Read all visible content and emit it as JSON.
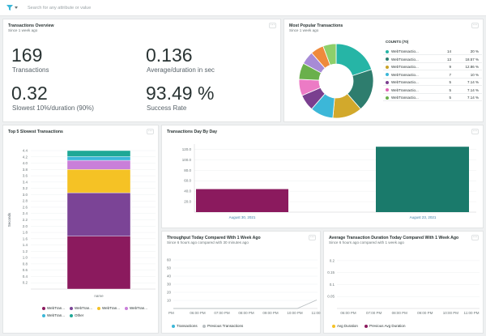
{
  "search": {
    "placeholder": "Search for any attribute or value"
  },
  "overview": {
    "title": "Transactions Overview",
    "subtitle": "Since 1 week ago",
    "stats": [
      {
        "value": "169",
        "label": "Transactions"
      },
      {
        "value": "0.136",
        "label": "Average/duration in sec"
      },
      {
        "value": "0.32",
        "label": "Slowest 10%/duration (90%)"
      },
      {
        "value": "93.49 %",
        "label": "Success Rate"
      }
    ]
  },
  "popular": {
    "title": "Most Popular Transactions",
    "subtitle": "Since 1 week ago",
    "counts_label": "COUNTS (70)",
    "rows": [
      {
        "name": "WebTransactio...",
        "count": "14",
        "pct": "20 %",
        "color": "#26b5a6"
      },
      {
        "name": "WebTransactio...",
        "count": "13",
        "pct": "18.57 %",
        "color": "#2e7d6e"
      },
      {
        "name": "WebTransactio...",
        "count": "9",
        "pct": "12.86 %",
        "color": "#c9a227"
      },
      {
        "name": "WebTransactio...",
        "count": "7",
        "pct": "10 %",
        "color": "#3cb7d8"
      },
      {
        "name": "WebTransactio...",
        "count": "5",
        "pct": "7.14 %",
        "color": "#7a3f8f"
      },
      {
        "name": "WebTransactio...",
        "count": "5",
        "pct": "7.14 %",
        "color": "#e062b4"
      },
      {
        "name": "WebTransactio...",
        "count": "5",
        "pct": "7.14 %",
        "color": "#6ab04c"
      }
    ],
    "chart_data": {
      "type": "pie",
      "values": [
        14,
        13,
        9,
        7,
        5,
        5,
        5,
        4,
        4,
        4
      ],
      "colors": [
        "#26b5a6",
        "#2e7d6e",
        "#d2a92c",
        "#3cb7d8",
        "#7a3f8f",
        "#ec7bc5",
        "#6ab04c",
        "#a78bd6",
        "#ef8a3c",
        "#8ecf6a"
      ],
      "donut": true
    }
  },
  "slowest": {
    "title": "Top 5 Slowest Transactions",
    "ylabel": "Seconds",
    "xcat": "name",
    "chart_data": {
      "type": "bar",
      "stacked": true,
      "categories": [
        "name"
      ],
      "ylim": [
        0,
        4.4
      ],
      "yticks": [
        "4.4",
        "4.2",
        "4.0",
        "3.8",
        "3.6",
        "3.4",
        "3.2",
        "3.0",
        "2.8",
        "2.6",
        "2.4",
        "2.2",
        "2.0",
        "1.8",
        "1.6",
        "1.4",
        "1.2",
        "1.0",
        "0.8",
        "0.6",
        "0.4",
        "0.2"
      ],
      "series": [
        {
          "name": "WebTran...",
          "value": 1.68,
          "color": "#8b1a5e"
        },
        {
          "name": "WebTran...",
          "value": 1.38,
          "color": "#7b4496"
        },
        {
          "name": "WebTran...",
          "value": 0.74,
          "color": "#f5c225"
        },
        {
          "name": "WebTran...",
          "value": 0.29,
          "color": "#c97fd9"
        },
        {
          "name": "WebTran...",
          "value": 0.12,
          "color": "#3cb7d8"
        },
        {
          "name": "Other",
          "value": 0.19,
          "color": "#1ea896"
        }
      ]
    }
  },
  "byday": {
    "title": "Transactions Day By Day",
    "chart_data": {
      "type": "bar",
      "categories": [
        "August 30, 2021",
        "August 23, 2021"
      ],
      "values": [
        44,
        125
      ],
      "colors": [
        "#8b1a5e",
        "#1a7a6b"
      ],
      "ylim": [
        0,
        130
      ],
      "yticks": [
        "120.0",
        "100.0",
        "80.0",
        "60.0",
        "40.0",
        "20.0"
      ]
    }
  },
  "throughput": {
    "title": "Throughput Today Compared With 1 Week Ago",
    "subtitle": "Since 6 hours ago compared with 30 minutes ago",
    "legend": [
      "Transactions",
      "Previous Transactions"
    ],
    "legend_colors": [
      "#3cb7d8",
      "#b9bfc2"
    ],
    "chart_data": {
      "type": "line",
      "x": [
        "PM",
        "06:00 PM",
        "07:00 PM",
        "08:00 PM",
        "09:00 PM",
        "10:00 PM",
        "11:00 PM"
      ],
      "yticks": [
        "60",
        "50",
        "40",
        "30",
        "20",
        "10"
      ],
      "ylim": [
        0,
        65
      ],
      "series": [
        {
          "name": "Previous Transactions",
          "points": [
            [
              0,
              0
            ],
            [
              5.1,
              0
            ],
            [
              5.9,
              10.5
            ]
          ]
        }
      ]
    }
  },
  "duration": {
    "title": "Average Transaction Duration Today Compared With 1 Week Ago",
    "subtitle": "Since 6 hours ago compared with 1 week ago",
    "legend": [
      "Avg Duration",
      "Previous Avg Duration"
    ],
    "legend_colors": [
      "#f5c225",
      "#8b1a5e"
    ],
    "chart_data": {
      "type": "line",
      "x": [
        "06:00 PM",
        "07:00 PM",
        "08:00 PM",
        "09:00 PM",
        "10:00 PM",
        "11:00 PM"
      ],
      "yticks": [
        "0.2",
        "0.15",
        "0.1",
        "0.05"
      ],
      "ylim": [
        0,
        0.22
      ]
    }
  }
}
